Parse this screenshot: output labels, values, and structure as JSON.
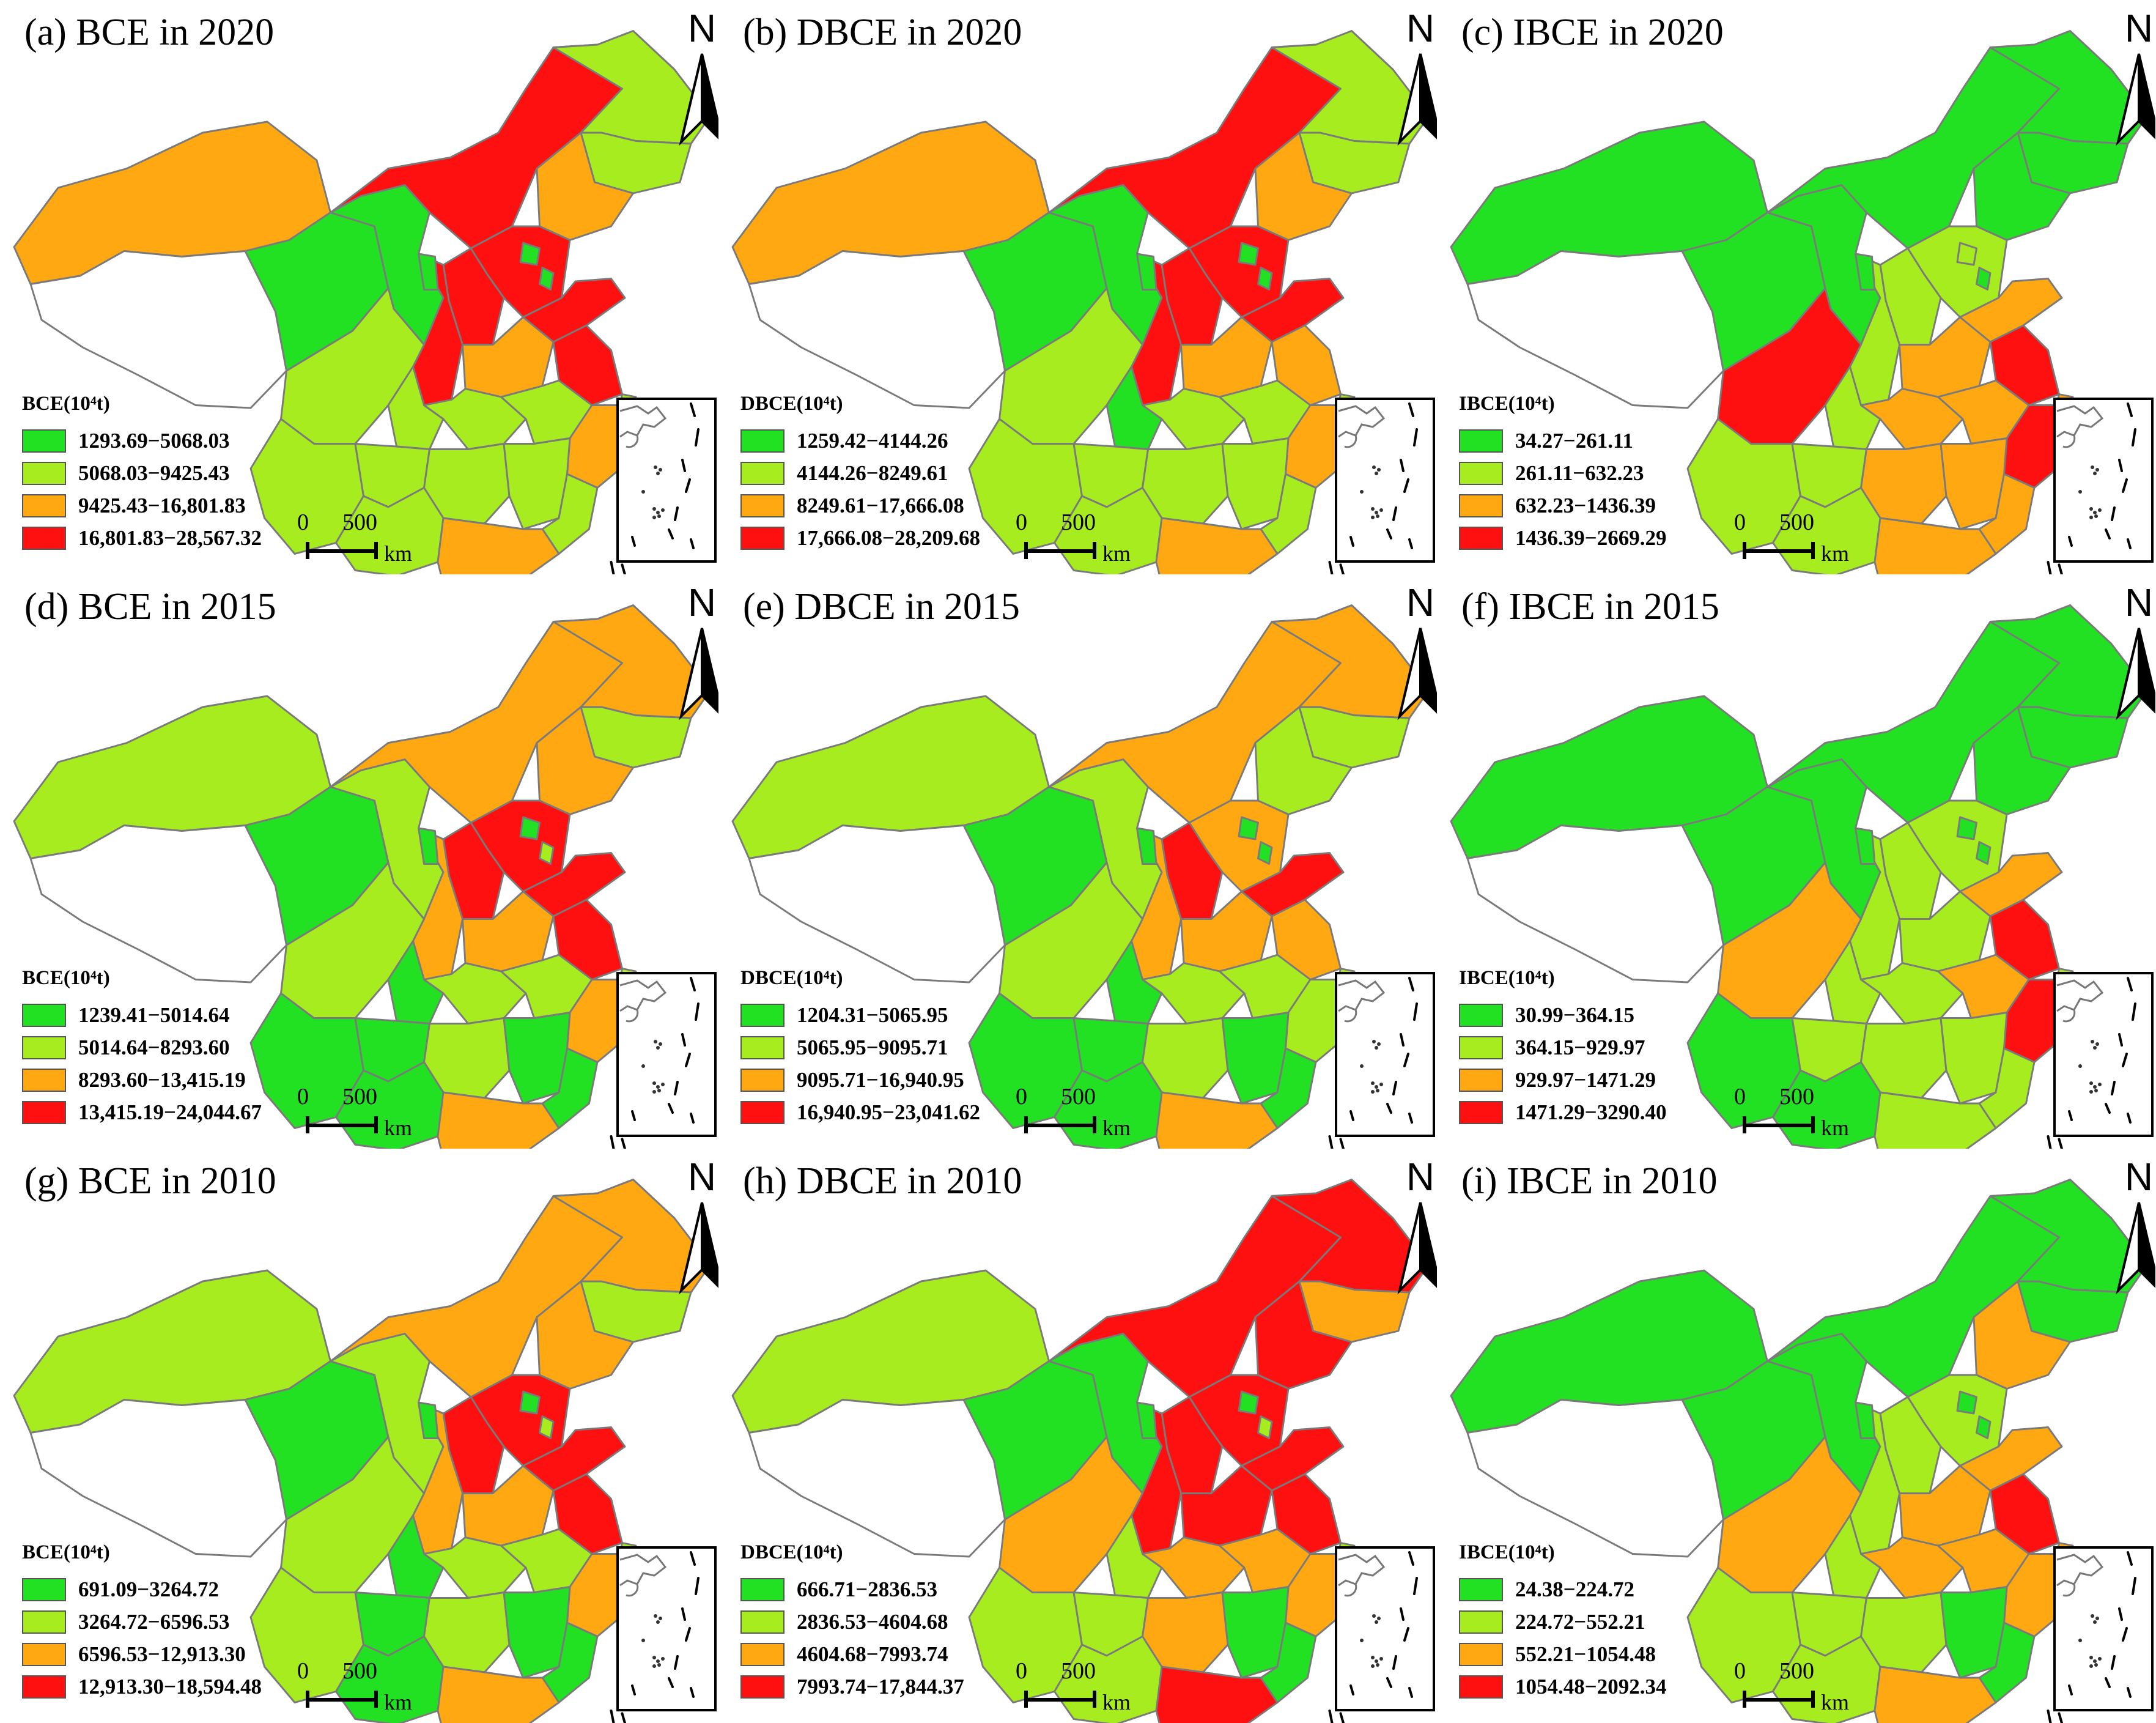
{
  "colors": {
    "class1": "#22e022",
    "class2": "#a6ec1e",
    "class3": "#ffa812",
    "class4": "#ff1010",
    "unassigned": "#ffffff",
    "boundary": "#7a7a7a"
  },
  "north_label": "N",
  "scale": {
    "zero": "0",
    "distance": "500",
    "unit": "km"
  },
  "panels": [
    {
      "title": "(a) BCE in 2020",
      "legend_title": "BCE(10⁴t)",
      "classes": [
        "1293.69−5068.03",
        "5068.03−9425.43",
        "9425.43−16,801.83",
        "16,801.83−28,567.32"
      ]
    },
    {
      "title": "(b) DBCE in 2020",
      "legend_title": "DBCE(10⁴t)",
      "classes": [
        "1259.42−4144.26",
        "4144.26−8249.61",
        "8249.61−17,666.08",
        "17,666.08−28,209.68"
      ]
    },
    {
      "title": "(c) IBCE in 2020",
      "legend_title": "IBCE(10⁴t)",
      "classes": [
        "34.27−261.11",
        "261.11−632.23",
        "632.23−1436.39",
        "1436.39−2669.29"
      ]
    },
    {
      "title": "(d) BCE in 2015",
      "legend_title": "BCE(10⁴t)",
      "classes": [
        "1239.41−5014.64",
        "5014.64−8293.60",
        "8293.60−13,415.19",
        "13,415.19−24,044.67"
      ]
    },
    {
      "title": "(e) DBCE in 2015",
      "legend_title": "DBCE(10⁴t)",
      "classes": [
        "1204.31−5065.95",
        "5065.95−9095.71",
        "9095.71−16,940.95",
        "16,940.95−23,041.62"
      ]
    },
    {
      "title": "(f) IBCE in 2015",
      "legend_title": "IBCE(10⁴t)",
      "classes": [
        "30.99−364.15",
        "364.15−929.97",
        "929.97−1471.29",
        "1471.29−3290.40"
      ]
    },
    {
      "title": "(g) BCE in 2010",
      "legend_title": "BCE(10⁴t)",
      "classes": [
        "691.09−3264.72",
        "3264.72−6596.53",
        "6596.53−12,913.30",
        "12,913.30−18,594.48"
      ]
    },
    {
      "title": "(h) DBCE in 2010",
      "legend_title": "DBCE(10⁴t)",
      "classes": [
        "666.71−2836.53",
        "2836.53−4604.68",
        "4604.68−7993.74",
        "7993.74−17,844.37"
      ]
    },
    {
      "title": "(i) IBCE in 2010",
      "legend_title": "IBCE(10⁴t)",
      "classes": [
        "24.38−224.72",
        "224.72−552.21",
        "552.21−1054.48",
        "1054.48−2092.34"
      ]
    }
  ],
  "region_classes": [
    {
      "Xinjiang": 3,
      "Tibet": 0,
      "Qinghai": 1,
      "Gansu": 1,
      "InnerMongolia": 4,
      "Heilongjiang": 2,
      "Jilin": 2,
      "Liaoning": 3,
      "Hebei": 4,
      "Beijing": 1,
      "Tianjin": 1,
      "Shanxi": 4,
      "Shaanxi": 4,
      "Ningxia": 1,
      "Henan": 3,
      "Shandong": 4,
      "Jiangsu": 4,
      "Shanghai": 2,
      "Sichuan": 2,
      "Chongqing": 2,
      "Hubei": 2,
      "Anhui": 2,
      "Zhejiang": 3,
      "Yunnan": 2,
      "Guizhou": 2,
      "Hunan": 2,
      "Jiangxi": 2,
      "Fujian": 2,
      "Guangxi": 2,
      "Guangdong": 3,
      "Hainan": 1,
      "Taiwan": 0
    },
    {
      "Xinjiang": 3,
      "Tibet": 0,
      "Qinghai": 1,
      "Gansu": 1,
      "InnerMongolia": 4,
      "Heilongjiang": 2,
      "Jilin": 2,
      "Liaoning": 3,
      "Hebei": 4,
      "Beijing": 1,
      "Tianjin": 1,
      "Shanxi": 4,
      "Shaanxi": 4,
      "Ningxia": 1,
      "Henan": 3,
      "Shandong": 4,
      "Jiangsu": 3,
      "Shanghai": 2,
      "Sichuan": 2,
      "Chongqing": 1,
      "Hubei": 2,
      "Anhui": 2,
      "Zhejiang": 3,
      "Yunnan": 2,
      "Guizhou": 2,
      "Hunan": 2,
      "Jiangxi": 2,
      "Fujian": 2,
      "Guangxi": 2,
      "Guangdong": 3,
      "Hainan": 1,
      "Taiwan": 0
    },
    {
      "Xinjiang": 1,
      "Tibet": 0,
      "Qinghai": 1,
      "Gansu": 1,
      "InnerMongolia": 1,
      "Heilongjiang": 1,
      "Jilin": 1,
      "Liaoning": 1,
      "Hebei": 2,
      "Beijing": 2,
      "Tianjin": 1,
      "Shanxi": 2,
      "Shaanxi": 2,
      "Ningxia": 1,
      "Henan": 3,
      "Shandong": 3,
      "Jiangsu": 4,
      "Shanghai": 3,
      "Sichuan": 4,
      "Chongqing": 2,
      "Hubei": 3,
      "Anhui": 3,
      "Zhejiang": 4,
      "Yunnan": 2,
      "Guizhou": 2,
      "Hunan": 3,
      "Jiangxi": 3,
      "Fujian": 3,
      "Guangxi": 2,
      "Guangdong": 3,
      "Hainan": 1,
      "Taiwan": 0
    },
    {
      "Xinjiang": 2,
      "Tibet": 0,
      "Qinghai": 1,
      "Gansu": 2,
      "InnerMongolia": 3,
      "Heilongjiang": 3,
      "Jilin": 2,
      "Liaoning": 3,
      "Hebei": 4,
      "Beijing": 1,
      "Tianjin": 2,
      "Shanxi": 4,
      "Shaanxi": 3,
      "Ningxia": 1,
      "Henan": 3,
      "Shandong": 4,
      "Jiangsu": 4,
      "Shanghai": 2,
      "Sichuan": 2,
      "Chongqing": 1,
      "Hubei": 2,
      "Anhui": 2,
      "Zhejiang": 3,
      "Yunnan": 1,
      "Guizhou": 1,
      "Hunan": 2,
      "Jiangxi": 1,
      "Fujian": 1,
      "Guangxi": 1,
      "Guangdong": 3,
      "Hainan": 1,
      "Taiwan": 0
    },
    {
      "Xinjiang": 2,
      "Tibet": 0,
      "Qinghai": 1,
      "Gansu": 2,
      "InnerMongolia": 3,
      "Heilongjiang": 3,
      "Jilin": 2,
      "Liaoning": 2,
      "Hebei": 3,
      "Beijing": 1,
      "Tianjin": 1,
      "Shanxi": 4,
      "Shaanxi": 3,
      "Ningxia": 1,
      "Henan": 3,
      "Shandong": 4,
      "Jiangsu": 3,
      "Shanghai": 2,
      "Sichuan": 2,
      "Chongqing": 1,
      "Hubei": 2,
      "Anhui": 2,
      "Zhejiang": 2,
      "Yunnan": 1,
      "Guizhou": 1,
      "Hunan": 2,
      "Jiangxi": 1,
      "Fujian": 1,
      "Guangxi": 1,
      "Guangdong": 3,
      "Hainan": 1,
      "Taiwan": 0
    },
    {
      "Xinjiang": 1,
      "Tibet": 0,
      "Qinghai": 1,
      "Gansu": 1,
      "InnerMongolia": 1,
      "Heilongjiang": 1,
      "Jilin": 1,
      "Liaoning": 1,
      "Hebei": 2,
      "Beijing": 1,
      "Tianjin": 1,
      "Shanxi": 2,
      "Shaanxi": 2,
      "Ningxia": 1,
      "Henan": 2,
      "Shandong": 3,
      "Jiangsu": 4,
      "Shanghai": 2,
      "Sichuan": 3,
      "Chongqing": 2,
      "Hubei": 2,
      "Anhui": 3,
      "Zhejiang": 4,
      "Yunnan": 1,
      "Guizhou": 2,
      "Hunan": 2,
      "Jiangxi": 2,
      "Fujian": 2,
      "Guangxi": 1,
      "Guangdong": 2,
      "Hainan": 1,
      "Taiwan": 0
    },
    {
      "Xinjiang": 2,
      "Tibet": 0,
      "Qinghai": 1,
      "Gansu": 2,
      "InnerMongolia": 3,
      "Heilongjiang": 3,
      "Jilin": 2,
      "Liaoning": 3,
      "Hebei": 4,
      "Beijing": 1,
      "Tianjin": 2,
      "Shanxi": 4,
      "Shaanxi": 3,
      "Ningxia": 1,
      "Henan": 3,
      "Shandong": 4,
      "Jiangsu": 4,
      "Shanghai": 2,
      "Sichuan": 2,
      "Chongqing": 1,
      "Hubei": 2,
      "Anhui": 2,
      "Zhejiang": 3,
      "Yunnan": 2,
      "Guizhou": 1,
      "Hunan": 2,
      "Jiangxi": 1,
      "Fujian": 1,
      "Guangxi": 1,
      "Guangdong": 3,
      "Hainan": 1,
      "Taiwan": 0
    },
    {
      "Xinjiang": 2,
      "Tibet": 0,
      "Qinghai": 1,
      "Gansu": 1,
      "InnerMongolia": 4,
      "Heilongjiang": 4,
      "Jilin": 3,
      "Liaoning": 4,
      "Hebei": 4,
      "Beijing": 1,
      "Tianjin": 2,
      "Shanxi": 4,
      "Shaanxi": 4,
      "Ningxia": 1,
      "Henan": 4,
      "Shandong": 4,
      "Jiangsu": 4,
      "Shanghai": 2,
      "Sichuan": 3,
      "Chongqing": 2,
      "Hubei": 3,
      "Anhui": 3,
      "Zhejiang": 3,
      "Yunnan": 2,
      "Guizhou": 2,
      "Hunan": 3,
      "Jiangxi": 1,
      "Fujian": 1,
      "Guangxi": 2,
      "Guangdong": 4,
      "Hainan": 1,
      "Taiwan": 0
    },
    {
      "Xinjiang": 1,
      "Tibet": 0,
      "Qinghai": 1,
      "Gansu": 1,
      "InnerMongolia": 1,
      "Heilongjiang": 1,
      "Jilin": 1,
      "Liaoning": 3,
      "Hebei": 2,
      "Beijing": 1,
      "Tianjin": 1,
      "Shanxi": 2,
      "Shaanxi": 2,
      "Ningxia": 1,
      "Henan": 3,
      "Shandong": 3,
      "Jiangsu": 4,
      "Shanghai": 3,
      "Sichuan": 3,
      "Chongqing": 2,
      "Hubei": 3,
      "Anhui": 3,
      "Zhejiang": 3,
      "Yunnan": 2,
      "Guizhou": 2,
      "Hunan": 2,
      "Jiangxi": 1,
      "Fujian": 1,
      "Guangxi": 2,
      "Guangdong": 3,
      "Hainan": 1,
      "Taiwan": 0
    }
  ]
}
